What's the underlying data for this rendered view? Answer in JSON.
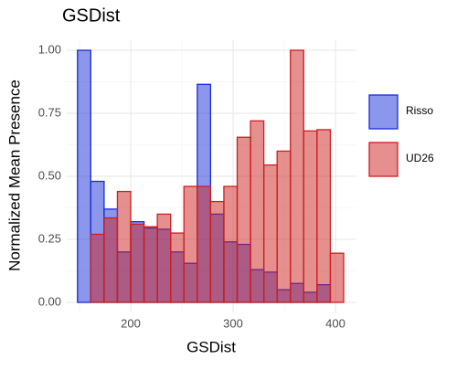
{
  "chart_data": {
    "type": "histogram",
    "title": "GSDist",
    "x_label": "GSDist",
    "y_label": "Normalized Mean Presence",
    "bins": [
      148,
      161,
      174,
      187,
      200,
      213,
      226,
      239,
      252,
      265,
      278,
      291,
      304,
      317,
      330,
      343,
      356,
      369,
      382,
      395,
      408
    ],
    "series": [
      {
        "name": "Risso",
        "color": "#1a2ed6",
        "values": [
          1.0,
          0.48,
          0.37,
          0.2,
          0.32,
          0.295,
          0.29,
          0.2,
          0.155,
          0.865,
          0.35,
          0.24,
          0.23,
          0.13,
          0.12,
          0.05,
          0.075,
          0.04,
          0.07,
          0
        ]
      },
      {
        "name": "UD26",
        "color": "#cc1f1f",
        "values": [
          0,
          0.27,
          0.335,
          0.44,
          0.31,
          0.3,
          0.35,
          0.275,
          0.46,
          0.46,
          0.4,
          0.46,
          0.655,
          0.72,
          0.545,
          0.6,
          1.0,
          0.68,
          0.685,
          0.195
        ]
      }
    ],
    "xlim": [
      137.5,
      420.5
    ],
    "xticks": [
      200,
      300,
      400
    ],
    "x_minor_grid": [
      150,
      250,
      350
    ],
    "ylim": [
      -0.04,
      1.04
    ],
    "yticks": [
      {
        "value": 0,
        "label": "0.00"
      },
      {
        "value": 0.25,
        "label": "0.25"
      },
      {
        "value": 0.5,
        "label": "0.50"
      },
      {
        "value": 0.75,
        "label": "0.75"
      },
      {
        "value": 1,
        "label": "1.00"
      }
    ],
    "y_minor_grid": [
      0.125,
      0.375,
      0.625,
      0.875
    ],
    "grid": true,
    "legend": "right",
    "fill_opacity": 0.5
  }
}
